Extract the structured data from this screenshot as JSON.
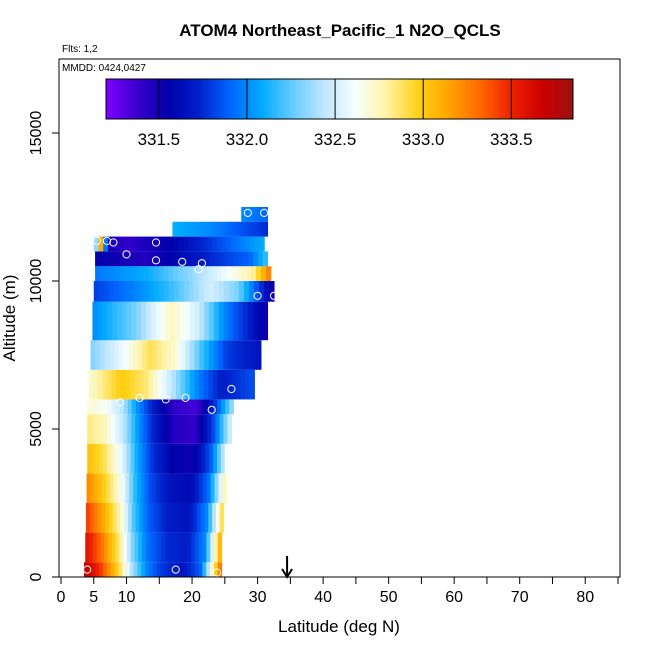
{
  "header": {
    "title": "ATOM4 Northeast_Pacific_1 N2O_QCLS",
    "flights": "Flts: 1,2",
    "mmdd": "MMDD: 0424,0427"
  },
  "colors": {
    "colormap": [
      "#7f00ff",
      "#3a00d0",
      "#0000a8",
      "#0022cc",
      "#0066ff",
      "#00aaff",
      "#66ccff",
      "#bfe6ff",
      "#f5ffff",
      "#fff3a8",
      "#ffd21a",
      "#ffa500",
      "#ff6a00",
      "#ee2200",
      "#cc0000",
      "#9b1111"
    ],
    "marker": "#ffffff",
    "arrow": "#000000"
  },
  "chart_data": {
    "type": "heatmap",
    "title": "ATOM4 Northeast_Pacific_1 N2O_QCLS",
    "xlabel": "Latitude (deg N)",
    "ylabel": "Altitude (m)",
    "xlim": [
      0,
      85
    ],
    "ylim": [
      0,
      17500
    ],
    "x_ticks": [
      0,
      5,
      10,
      20,
      30,
      40,
      50,
      60,
      70,
      80
    ],
    "x_minor_ticks": [
      15,
      25,
      35,
      45,
      55,
      65,
      75,
      85
    ],
    "y_ticks": [
      0,
      5000,
      10000,
      15000
    ],
    "colorbar": {
      "range": [
        331.2,
        333.85
      ],
      "ticks": [
        331.5,
        332.0,
        332.5,
        333.0,
        333.5
      ],
      "tick_labels": [
        "331.5",
        "332.0",
        "332.5",
        "333.0",
        "333.5"
      ]
    },
    "arrow_latitude": 34.5,
    "curtain": {
      "bands": [
        {
          "alt0": 0,
          "alt1": 500,
          "lat0": 3.5,
          "lat1": 24.5,
          "profile": [
            [
              0,
              333.75
            ],
            [
              0.12,
              333.45
            ],
            [
              0.25,
              332.95
            ],
            [
              0.35,
              332.4
            ],
            [
              0.45,
              332.0
            ],
            [
              0.55,
              331.8
            ],
            [
              0.72,
              331.65
            ],
            [
              0.85,
              331.9
            ],
            [
              1,
              333.4
            ]
          ]
        },
        {
          "alt0": 500,
          "alt1": 1500,
          "lat0": 3.7,
          "lat1": 24.5,
          "profile": [
            [
              0,
              333.6
            ],
            [
              0.12,
              333.3
            ],
            [
              0.25,
              332.85
            ],
            [
              0.35,
              332.3
            ],
            [
              0.45,
              331.95
            ],
            [
              0.6,
              331.75
            ],
            [
              0.75,
              331.7
            ],
            [
              0.88,
              332.0
            ],
            [
              1,
              333.2
            ]
          ]
        },
        {
          "alt0": 1500,
          "alt1": 2500,
          "lat0": 3.8,
          "lat1": 24.8,
          "profile": [
            [
              0,
              333.45
            ],
            [
              0.12,
              333.15
            ],
            [
              0.25,
              332.75
            ],
            [
              0.35,
              332.2
            ],
            [
              0.45,
              331.9
            ],
            [
              0.6,
              331.7
            ],
            [
              0.75,
              331.65
            ],
            [
              0.88,
              332.0
            ],
            [
              1,
              333.0
            ]
          ]
        },
        {
          "alt0": 2500,
          "alt1": 3500,
          "lat0": 3.9,
          "lat1": 25.2,
          "profile": [
            [
              0,
              333.25
            ],
            [
              0.12,
              333.0
            ],
            [
              0.25,
              332.65
            ],
            [
              0.35,
              332.15
            ],
            [
              0.45,
              331.85
            ],
            [
              0.6,
              331.65
            ],
            [
              0.75,
              331.6
            ],
            [
              0.88,
              331.95
            ],
            [
              1,
              332.85
            ]
          ]
        },
        {
          "alt0": 3500,
          "alt1": 4500,
          "lat0": 4.0,
          "lat1": 25.6,
          "profile": [
            [
              0,
              333.05
            ],
            [
              0.12,
              332.9
            ],
            [
              0.25,
              332.55
            ],
            [
              0.35,
              332.1
            ],
            [
              0.45,
              331.8
            ],
            [
              0.6,
              331.55
            ],
            [
              0.75,
              331.5
            ],
            [
              0.88,
              331.9
            ],
            [
              1,
              332.7
            ]
          ]
        },
        {
          "alt0": 4500,
          "alt1": 5500,
          "lat0": 4.0,
          "lat1": 26.0,
          "profile": [
            [
              0,
              332.85
            ],
            [
              0.12,
              332.75
            ],
            [
              0.25,
              332.45
            ],
            [
              0.35,
              332.05
            ],
            [
              0.45,
              331.75
            ],
            [
              0.6,
              331.45
            ],
            [
              0.75,
              331.4
            ],
            [
              0.88,
              331.85
            ],
            [
              1,
              332.55
            ]
          ]
        },
        {
          "alt0": 5500,
          "alt1": 6000,
          "lat0": 4.0,
          "lat1": 26.3,
          "profile": [
            [
              0,
              332.7
            ],
            [
              0.12,
              332.65
            ],
            [
              0.25,
              332.4
            ],
            [
              0.35,
              332.0
            ],
            [
              0.45,
              331.7
            ],
            [
              0.6,
              331.4
            ],
            [
              0.75,
              331.35
            ],
            [
              0.88,
              331.8
            ],
            [
              1,
              332.4
            ]
          ]
        },
        {
          "alt0": 6000,
          "alt1": 7000,
          "lat0": 4.2,
          "lat1": 29.5,
          "profile": [
            [
              0,
              332.7
            ],
            [
              0.2,
              333.0
            ],
            [
              0.35,
              332.85
            ],
            [
              0.5,
              332.45
            ],
            [
              0.65,
              332.0
            ],
            [
              0.8,
              331.7
            ],
            [
              1,
              331.85
            ]
          ]
        },
        {
          "alt0": 7000,
          "alt1": 8000,
          "lat0": 4.5,
          "lat1": 30.5,
          "profile": [
            [
              0,
              332.3
            ],
            [
              0.2,
              332.6
            ],
            [
              0.35,
              332.9
            ],
            [
              0.5,
              332.7
            ],
            [
              0.65,
              332.2
            ],
            [
              0.8,
              331.8
            ],
            [
              1,
              331.65
            ]
          ]
        },
        {
          "alt0": 8000,
          "alt1": 9300,
          "lat0": 4.8,
          "lat1": 31.5,
          "profile": [
            [
              0,
              332.0
            ],
            [
              0.25,
              332.3
            ],
            [
              0.45,
              332.75
            ],
            [
              0.6,
              332.5
            ],
            [
              0.75,
              332.0
            ],
            [
              0.9,
              331.7
            ],
            [
              1,
              331.5
            ]
          ]
        },
        {
          "alt0": 9300,
          "alt1": 10000,
          "lat0": 5.0,
          "lat1": 32.5,
          "profile": [
            [
              0,
              331.8
            ],
            [
              0.25,
              332.0
            ],
            [
              0.45,
              332.2
            ],
            [
              0.65,
              332.5
            ],
            [
              0.8,
              332.3
            ],
            [
              0.92,
              331.8
            ],
            [
              1,
              331.45
            ]
          ]
        },
        {
          "alt0": 10000,
          "alt1": 10500,
          "lat0": 5.2,
          "lat1": 32.0,
          "profile": [
            [
              0,
              331.95
            ],
            [
              0.3,
              332.1
            ],
            [
              0.55,
              332.35
            ],
            [
              0.75,
              332.6
            ],
            [
              0.9,
              332.8
            ],
            [
              1,
              333.3
            ]
          ]
        },
        {
          "alt0": 10500,
          "alt1": 11000,
          "lat0": 5.2,
          "lat1": 31.5,
          "profile": [
            [
              0,
              331.55
            ],
            [
              0.3,
              331.45
            ],
            [
              0.55,
              331.65
            ],
            [
              0.75,
              331.8
            ],
            [
              0.9,
              331.9
            ],
            [
              1,
              332.2
            ]
          ]
        },
        {
          "alt0": 11000,
          "alt1": 11500,
          "lat0": 5.0,
          "lat1": 31.0,
          "profile": [
            [
              0,
              331.9
            ],
            [
              0.04,
              333.2
            ],
            [
              0.08,
              331.5
            ],
            [
              0.2,
              331.4
            ],
            [
              0.45,
              331.55
            ],
            [
              0.7,
              331.8
            ],
            [
              0.9,
              332.0
            ],
            [
              1,
              332.1
            ]
          ]
        },
        {
          "alt0": 11500,
          "alt1": 12000,
          "lat0": 17.0,
          "lat1": 31.5,
          "profile": [
            [
              0,
              332.1
            ],
            [
              0.4,
              332.0
            ],
            [
              0.75,
              331.85
            ],
            [
              1,
              331.75
            ]
          ]
        },
        {
          "alt0": 12000,
          "alt1": 12500,
          "lat0": 27.5,
          "lat1": 31.5,
          "profile": [
            [
              0,
              332.0
            ],
            [
              1,
              331.9
            ]
          ]
        }
      ],
      "markers": [
        [
          4.0,
          250
        ],
        [
          17.5,
          250
        ],
        [
          23.8,
          150
        ],
        [
          4.0,
          5850
        ],
        [
          9.0,
          5900
        ],
        [
          12.0,
          6050
        ],
        [
          16.0,
          6000
        ],
        [
          19.0,
          6050
        ],
        [
          23.0,
          5650
        ],
        [
          26.0,
          6350
        ],
        [
          30.0,
          9500
        ],
        [
          32.5,
          9500
        ],
        [
          33.0,
          9000
        ],
        [
          21.0,
          10400
        ],
        [
          21.5,
          10600
        ],
        [
          14.5,
          10700
        ],
        [
          18.5,
          10650
        ],
        [
          10.0,
          10900
        ],
        [
          5.5,
          11350
        ],
        [
          7.0,
          11350
        ],
        [
          8.0,
          11300
        ],
        [
          14.5,
          11300
        ],
        [
          28.5,
          12300
        ],
        [
          31.0,
          12300
        ]
      ]
    }
  }
}
